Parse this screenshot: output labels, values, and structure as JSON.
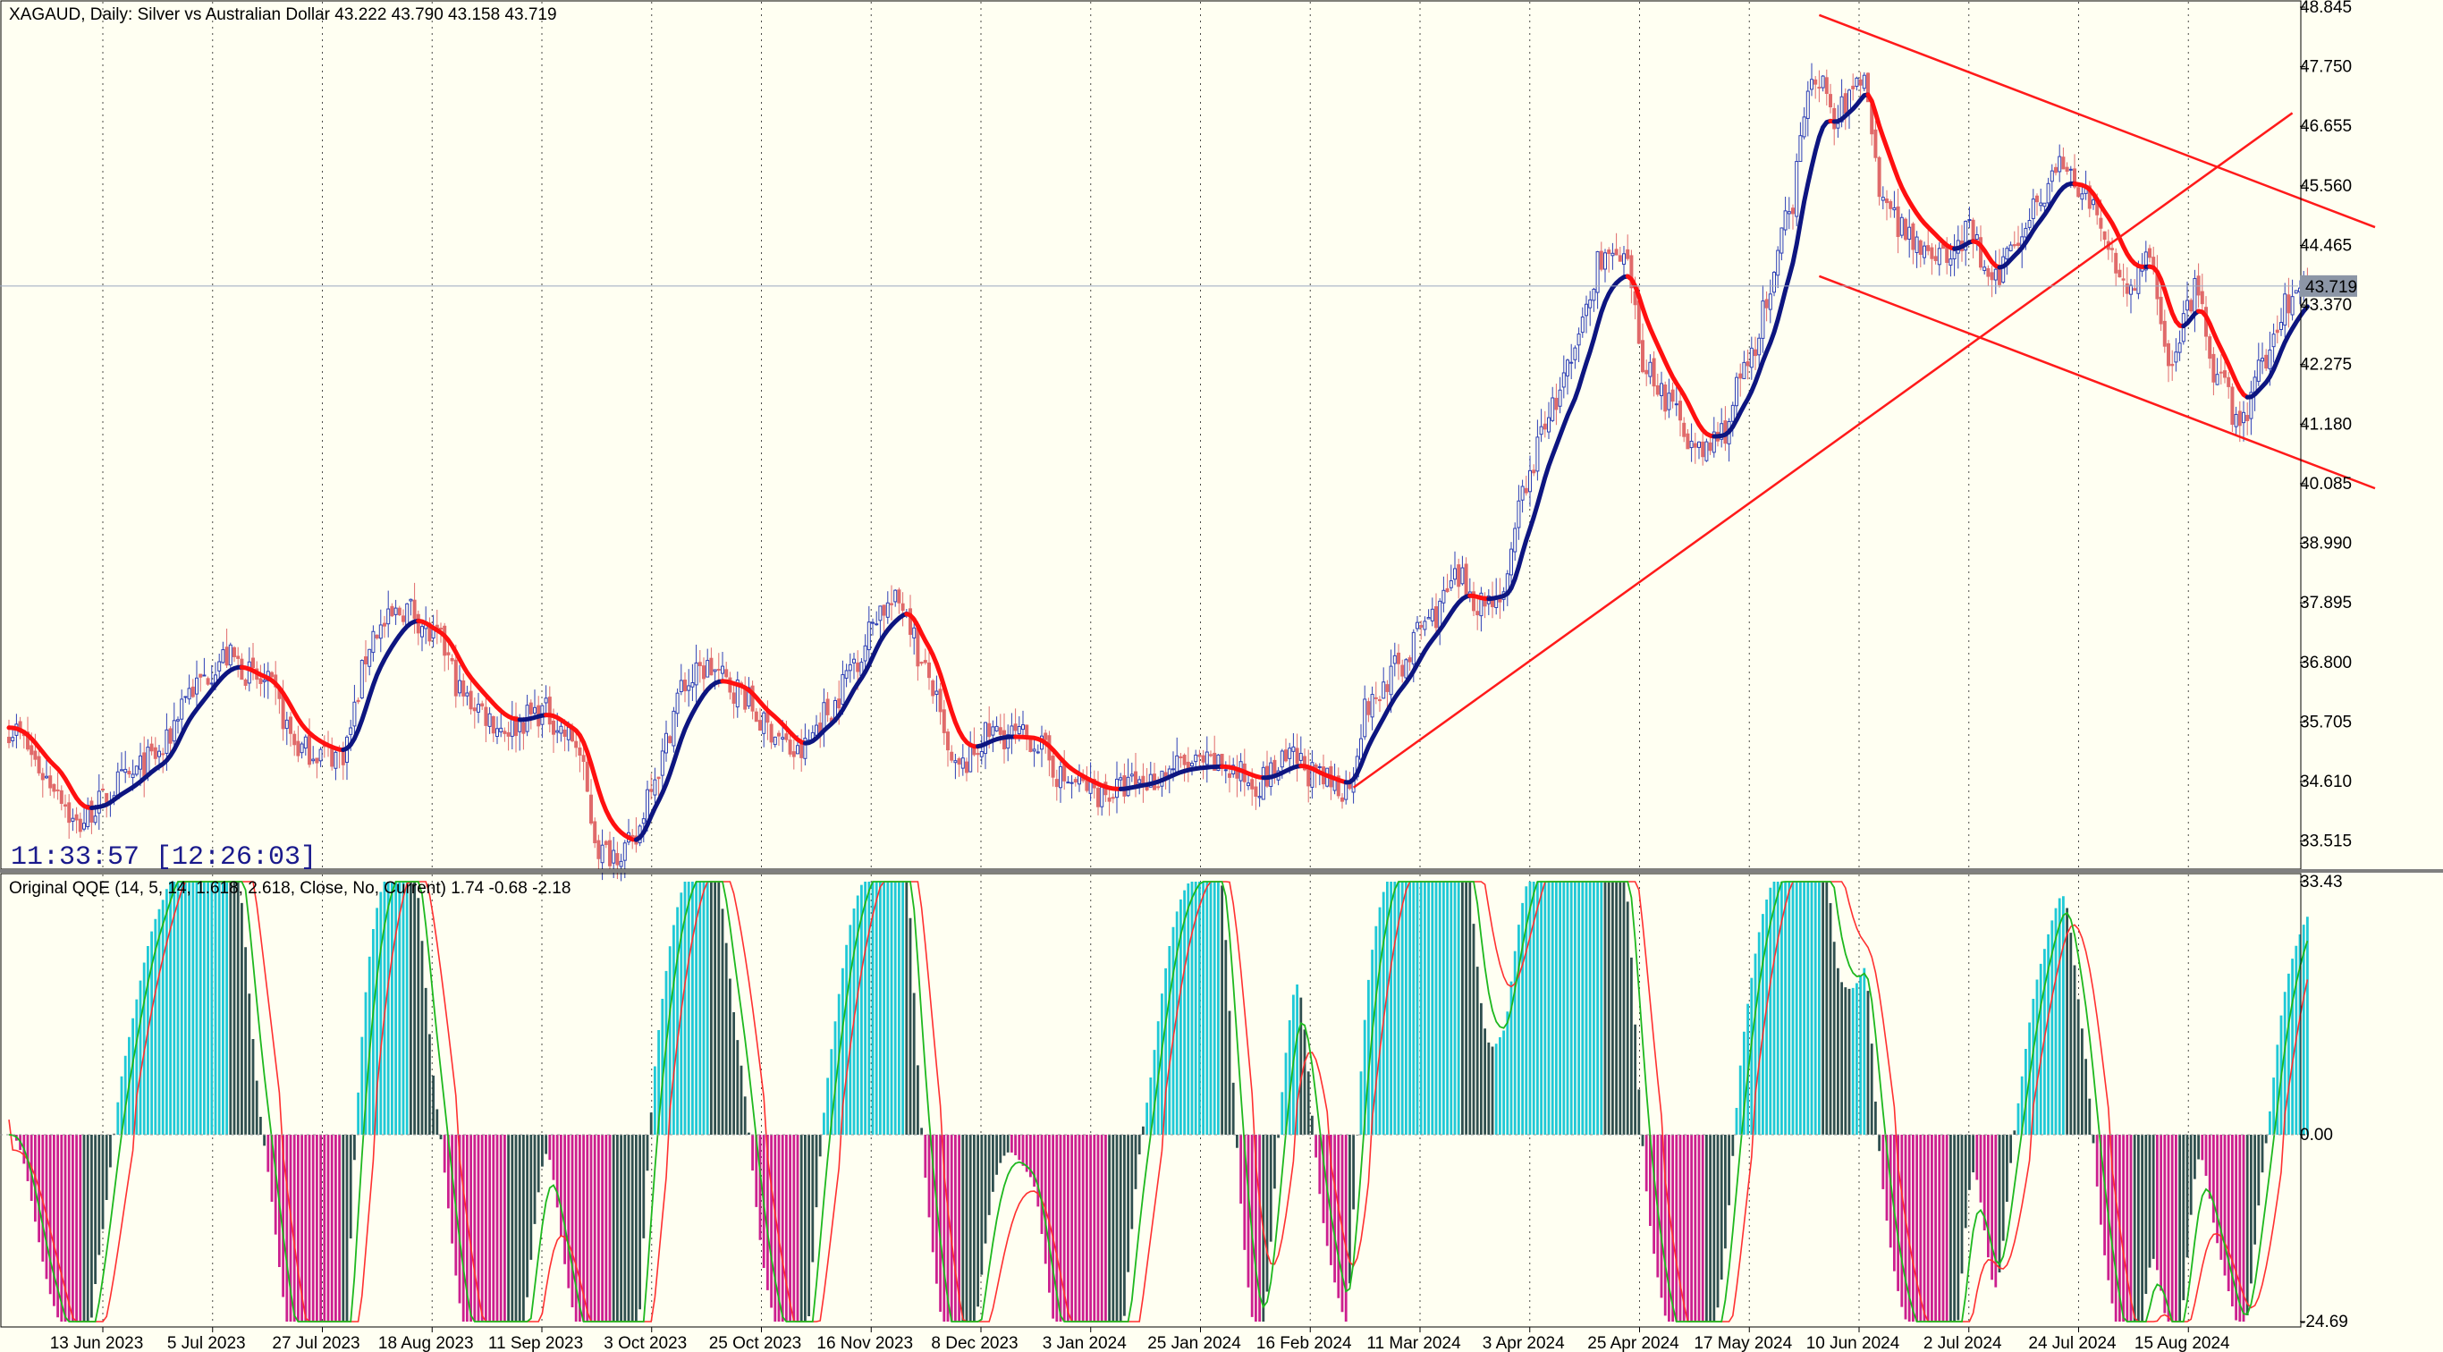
{
  "window": {
    "main_title": "XAGAUD, Daily:  Silver vs Australian Dollar  43.222 43.790 43.158 43.719",
    "indicator_title": "Original QQE (14, 5, 14, 1.618, 2.618, Close, No, Current) 1.74 -0.68 -2.18",
    "timer": "11:33:57 [12:26:03]"
  },
  "colors": {
    "background": "#fffff2",
    "bull_candle": "#2d3fb5",
    "bear_candle": "#e06a6a",
    "ma_up": "#0d1580",
    "ma_down": "#ff1010",
    "trendline": "#ff1a1a",
    "hist_bull_strong": "#1fc9d6",
    "hist_bear_strong": "#cc1f8f",
    "hist_weak": "#2f4f4f",
    "qqe_fast": "#1eb81e",
    "qqe_slow": "#ff3030",
    "price_marker_bg": "#8c96a6"
  },
  "chart_data": [
    {
      "type": "candlestick",
      "symbol": "XAGAUD",
      "timeframe": "Daily",
      "ylim": [
        33.0,
        48.845
      ],
      "y_ticks": [
        "48.845",
        "47.750",
        "46.655",
        "45.560",
        "44.465",
        "43.370",
        "42.275",
        "41.180",
        "40.085",
        "38.990",
        "37.895",
        "36.800",
        "35.705",
        "34.610",
        "33.515"
      ],
      "x_ticks": [
        "13 Jun 2023",
        "5 Jul 2023",
        "27 Jul 2023",
        "18 Aug 2023",
        "11 Sep 2023",
        "3 Oct 2023",
        "25 Oct 2023",
        "16 Nov 2023",
        "8 Dec 2023",
        "3 Jan 2024",
        "25 Jan 2024",
        "16 Feb 2024",
        "11 Mar 2024",
        "3 Apr 2024",
        "25 Apr 2024",
        "17 May 2024",
        "10 Jun 2024",
        "2 Jul 2024",
        "24 Jul 2024",
        "15 Aug 2024"
      ],
      "current_price": "43.719",
      "close_anchors": [
        [
          0,
          35.6
        ],
        [
          12,
          34.6
        ],
        [
          18,
          33.8
        ],
        [
          24,
          34.2
        ],
        [
          30,
          34.6
        ],
        [
          40,
          35.1
        ],
        [
          48,
          36.3
        ],
        [
          58,
          36.9
        ],
        [
          68,
          36.4
        ],
        [
          78,
          35.2
        ],
        [
          88,
          35.1
        ],
        [
          98,
          37.4
        ],
        [
          106,
          37.8
        ],
        [
          114,
          37.2
        ],
        [
          122,
          36.1
        ],
        [
          132,
          35.6
        ],
        [
          142,
          35.9
        ],
        [
          150,
          35.4
        ],
        [
          158,
          33.3
        ],
        [
          166,
          33.4
        ],
        [
          172,
          34.8
        ],
        [
          180,
          36.4
        ],
        [
          186,
          36.7
        ],
        [
          194,
          36.3
        ],
        [
          202,
          35.6
        ],
        [
          210,
          35.1
        ],
        [
          218,
          35.9
        ],
        [
          226,
          36.9
        ],
        [
          232,
          37.8
        ],
        [
          238,
          37.9
        ],
        [
          244,
          36.6
        ],
        [
          252,
          34.8
        ],
        [
          262,
          35.5
        ],
        [
          272,
          35.4
        ],
        [
          282,
          34.6
        ],
        [
          292,
          34.4
        ],
        [
          302,
          34.6
        ],
        [
          312,
          34.9
        ],
        [
          322,
          34.9
        ],
        [
          332,
          34.6
        ],
        [
          342,
          35.0
        ],
        [
          350,
          34.6
        ],
        [
          356,
          34.5
        ],
        [
          362,
          36.0
        ],
        [
          370,
          36.7
        ],
        [
          378,
          37.6
        ],
        [
          386,
          38.3
        ],
        [
          392,
          37.9
        ],
        [
          398,
          38.1
        ],
        [
          404,
          40.1
        ],
        [
          410,
          41.4
        ],
        [
          416,
          42.2
        ],
        [
          420,
          43.3
        ],
        [
          424,
          44.3
        ],
        [
          430,
          44.1
        ],
        [
          436,
          42.2
        ],
        [
          444,
          41.4
        ],
        [
          450,
          40.6
        ],
        [
          456,
          41.0
        ],
        [
          462,
          42.1
        ],
        [
          468,
          43.3
        ],
        [
          474,
          45.0
        ],
        [
          478,
          47.0
        ],
        [
          482,
          47.6
        ],
        [
          486,
          46.7
        ],
        [
          490,
          47.2
        ],
        [
          494,
          47.6
        ],
        [
          498,
          45.6
        ],
        [
          504,
          44.8
        ],
        [
          510,
          44.5
        ],
        [
          516,
          44.2
        ],
        [
          522,
          44.7
        ],
        [
          528,
          43.7
        ],
        [
          534,
          44.6
        ],
        [
          540,
          45.3
        ],
        [
          546,
          45.9
        ],
        [
          552,
          45.5
        ],
        [
          558,
          44.6
        ],
        [
          564,
          43.7
        ],
        [
          570,
          44.1
        ],
        [
          576,
          42.3
        ],
        [
          582,
          43.6
        ],
        [
          588,
          42.0
        ],
        [
          594,
          41.2
        ],
        [
          600,
          42.2
        ],
        [
          606,
          43.4
        ],
        [
          612,
          43.719
        ]
      ],
      "trendlines": [
        {
          "start_bar": 358,
          "start_price": 34.5,
          "end_bar": 608,
          "end_price": 46.9
        },
        {
          "start_bar": 482,
          "start_price": 48.7,
          "end_bar": 630,
          "end_price": 44.8
        },
        {
          "start_bar": 482,
          "start_price": 43.9,
          "end_bar": 630,
          "end_price": 40.0
        }
      ]
    },
    {
      "type": "histogram",
      "name": "Original QQE",
      "params": "14, 5, 14, 1.618, 2.618, Close, No, Current",
      "ylim": [
        -24.69,
        33.43
      ],
      "y_ticks": [
        "33.43",
        "0.00",
        "-24.69"
      ],
      "last_values": {
        "histogram": 1.74,
        "fast": -0.68,
        "slow": -2.18
      },
      "threshold": 0
    }
  ]
}
